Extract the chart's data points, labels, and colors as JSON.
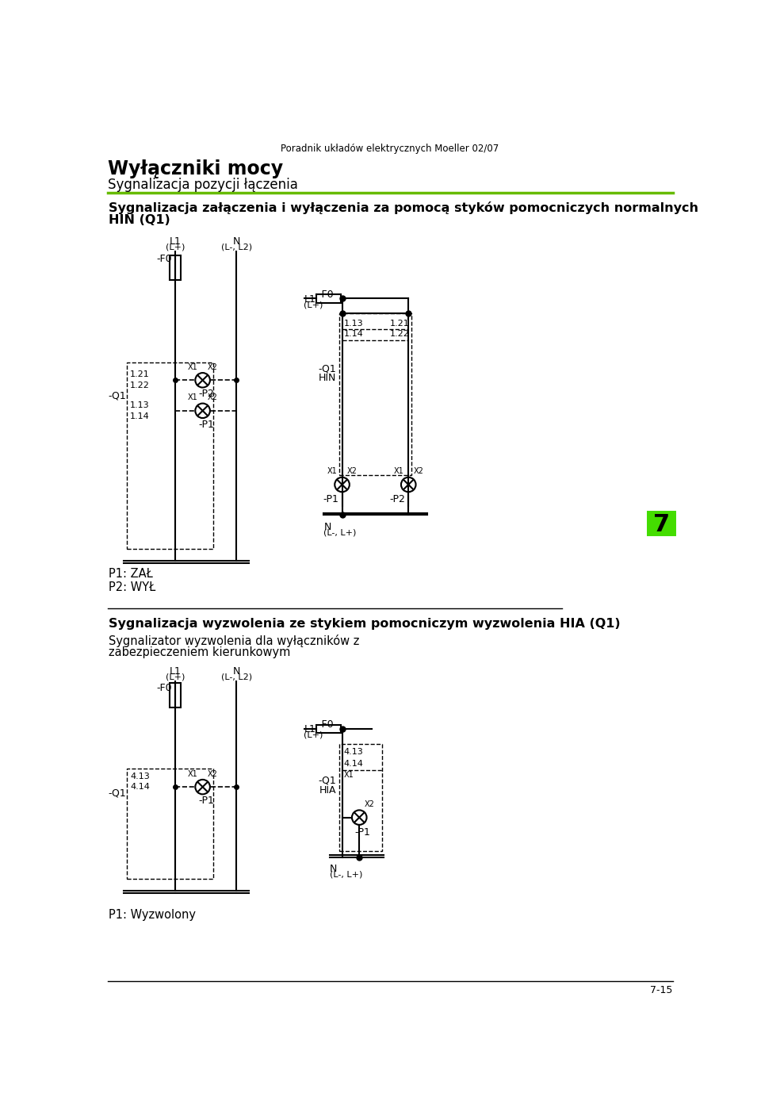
{
  "page_title": "Poradnik układów elektrycznych Moeller 02/07",
  "main_title": "Wyłączniki mocy",
  "subtitle": "Sygnalizacja pozycji łączenia",
  "section1_title": "Sygnalizacja załączenia i wyłączenia za pomocą styków pomocniczych normalnych",
  "section1_title2": "HIN (Q1)",
  "section2_title": "Sygnalizacja wyzwolenia ze stykiem pomocniczym wyzwolenia HIA (Q1)",
  "section2_sub1": "Sygnalizator wyzwolenia dla wyłączników z",
  "section2_sub2": "zabezpieczeniem kierunkowym",
  "p1_zal": "P1: ZAŁ",
  "p2_wyl": "P2: WYŁ",
  "p1_wyzwolony": "P1: Wyzwolony",
  "page_num": "7-15",
  "bg_color": "#ffffff",
  "text_color": "#000000",
  "green_line_color": "#66bb00",
  "diagram_line_color": "#000000",
  "box_number": "7",
  "box_bg": "#44dd00"
}
